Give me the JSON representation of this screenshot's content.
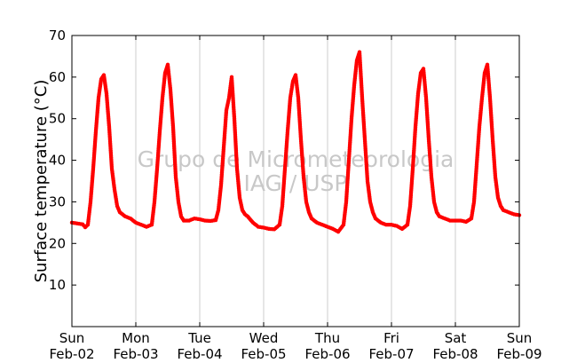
{
  "chart_data": {
    "type": "scatter",
    "title": "",
    "xlabel": "",
    "ylabel": "Surface temperature (°C)",
    "ylim": [
      0,
      70
    ],
    "yticks": [
      10,
      20,
      30,
      40,
      50,
      60,
      70
    ],
    "xlim": [
      "2014-02-02",
      "2014-02-09"
    ],
    "xticks": [
      {
        "date": "2014-02-02",
        "day": "Sun",
        "label": "Feb-02"
      },
      {
        "date": "2014-02-03",
        "day": "Mon",
        "label": "Feb-03"
      },
      {
        "date": "2014-02-04",
        "day": "Tue",
        "label": "Feb-04"
      },
      {
        "date": "2014-02-05",
        "day": "Wed",
        "label": "Feb-05"
      },
      {
        "date": "2014-02-06",
        "day": "Thu",
        "label": "Feb-06"
      },
      {
        "date": "2014-02-07",
        "day": "Fri",
        "label": "Feb-07"
      },
      {
        "date": "2014-02-08",
        "day": "Sat",
        "label": "Feb-08"
      },
      {
        "date": "2014-02-09",
        "day": "Sun",
        "label": "Feb-09"
      }
    ],
    "grid": "vertical",
    "watermark": [
      "Grupo de Micrometeorologia",
      "IAG / USP"
    ],
    "marker_color": "#ff0000",
    "series": [
      {
        "x": [
          "2014-02-02 00:00",
          "2014-02-02 02:00",
          "2014-02-02 04:00",
          "2014-02-02 05:00",
          "2014-02-02 06:00",
          "2014-02-02 07:00",
          "2014-02-02 08:00",
          "2014-02-02 09:00",
          "2014-02-02 10:00",
          "2014-02-02 11:00",
          "2014-02-02 12:00",
          "2014-02-02 13:00",
          "2014-02-02 14:00",
          "2014-02-02 15:00",
          "2014-02-02 16:00",
          "2014-02-02 17:00",
          "2014-02-02 18:00",
          "2014-02-02 20:00",
          "2014-02-02 22:00",
          "2014-02-03 00:00",
          "2014-02-03 02:00",
          "2014-02-03 04:00",
          "2014-02-03 06:00",
          "2014-02-03 07:00",
          "2014-02-03 08:00",
          "2014-02-03 09:00",
          "2014-02-03 10:00",
          "2014-02-03 11:00",
          "2014-02-03 12:00",
          "2014-02-03 13:00",
          "2014-02-03 14:00",
          "2014-02-03 15:00",
          "2014-02-03 16:00",
          "2014-02-03 17:00",
          "2014-02-03 18:00",
          "2014-02-03 20:00",
          "2014-02-03 22:00",
          "2014-02-04 00:00",
          "2014-02-04 02:00",
          "2014-02-04 04:00",
          "2014-02-04 06:00",
          "2014-02-04 07:00",
          "2014-02-04 08:00",
          "2014-02-04 09:00",
          "2014-02-04 10:00",
          "2014-02-04 11:00",
          "2014-02-04 12:00",
          "2014-02-04 13:00",
          "2014-02-04 14:00",
          "2014-02-04 15:00",
          "2014-02-04 16:00",
          "2014-02-04 17:00",
          "2014-02-04 18:00",
          "2014-02-04 20:00",
          "2014-02-04 22:00",
          "2014-02-05 00:00",
          "2014-02-05 02:00",
          "2014-02-05 04:00",
          "2014-02-05 06:00",
          "2014-02-05 07:00",
          "2014-02-05 08:00",
          "2014-02-05 09:00",
          "2014-02-05 10:00",
          "2014-02-05 11:00",
          "2014-02-05 12:00",
          "2014-02-05 13:00",
          "2014-02-05 14:00",
          "2014-02-05 15:00",
          "2014-02-05 16:00",
          "2014-02-05 17:00",
          "2014-02-05 18:00",
          "2014-02-05 20:00",
          "2014-02-05 22:00",
          "2014-02-06 00:00",
          "2014-02-06 02:00",
          "2014-02-06 04:00",
          "2014-02-06 06:00",
          "2014-02-06 07:00",
          "2014-02-06 08:00",
          "2014-02-06 09:00",
          "2014-02-06 10:00",
          "2014-02-06 11:00",
          "2014-02-06 12:00",
          "2014-02-06 13:00",
          "2014-02-06 14:00",
          "2014-02-06 15:00",
          "2014-02-06 16:00",
          "2014-02-06 17:00",
          "2014-02-06 18:00",
          "2014-02-06 20:00",
          "2014-02-06 22:00",
          "2014-02-07 00:00",
          "2014-02-07 02:00",
          "2014-02-07 04:00",
          "2014-02-07 06:00",
          "2014-02-07 07:00",
          "2014-02-07 08:00",
          "2014-02-07 09:00",
          "2014-02-07 10:00",
          "2014-02-07 11:00",
          "2014-02-07 12:00",
          "2014-02-07 13:00",
          "2014-02-07 14:00",
          "2014-02-07 15:00",
          "2014-02-07 16:00",
          "2014-02-07 17:00",
          "2014-02-07 18:00",
          "2014-02-07 20:00",
          "2014-02-07 22:00",
          "2014-02-08 00:00",
          "2014-02-08 02:00",
          "2014-02-08 04:00",
          "2014-02-08 06:00",
          "2014-02-08 07:00",
          "2014-02-08 08:00",
          "2014-02-08 09:00",
          "2014-02-08 10:00",
          "2014-02-08 11:00",
          "2014-02-08 12:00",
          "2014-02-08 13:00",
          "2014-02-08 14:00",
          "2014-02-08 15:00",
          "2014-02-08 16:00",
          "2014-02-08 17:00",
          "2014-02-08 18:00",
          "2014-02-08 20:00",
          "2014-02-08 22:00",
          "2014-02-09 00:00"
        ],
        "y": [
          25.0,
          24.8,
          24.6,
          23.9,
          24.5,
          30.0,
          38.0,
          47.0,
          55.0,
          59.5,
          60.5,
          56.0,
          48.0,
          38.0,
          33.0,
          29.0,
          27.5,
          26.5,
          26.0,
          25.0,
          24.5,
          24.0,
          24.5,
          30.0,
          38.0,
          47.0,
          55.0,
          61.0,
          63.0,
          57.0,
          48.0,
          36.0,
          30.0,
          26.5,
          25.5,
          25.5,
          26.0,
          25.8,
          25.5,
          25.4,
          25.6,
          28.0,
          34.0,
          43.0,
          52.0,
          55.0,
          60.0,
          50.0,
          38.0,
          31.0,
          28.0,
          27.0,
          26.5,
          25.0,
          24.0,
          23.8,
          23.5,
          23.4,
          24.5,
          29.0,
          38.0,
          47.0,
          55.0,
          59.0,
          60.5,
          55.0,
          45.0,
          36.0,
          30.0,
          27.5,
          26.0,
          25.0,
          24.5,
          24.0,
          23.5,
          22.8,
          24.5,
          30.0,
          40.0,
          50.0,
          58.0,
          64.0,
          66.0,
          55.0,
          45.0,
          35.0,
          30.0,
          27.5,
          26.0,
          25.0,
          24.5,
          24.5,
          24.2,
          23.5,
          24.5,
          29.0,
          38.0,
          48.0,
          56.0,
          61.0,
          62.0,
          55.0,
          45.0,
          36.0,
          30.0,
          27.5,
          26.5,
          26.0,
          25.5,
          25.5,
          25.5,
          25.2,
          26.0,
          30.0,
          39.0,
          48.0,
          55.0,
          61.0,
          63.0,
          55.0,
          45.0,
          36.0,
          31.0,
          29.0,
          28.0,
          27.5,
          27.0,
          26.8
        ]
      }
    ]
  }
}
